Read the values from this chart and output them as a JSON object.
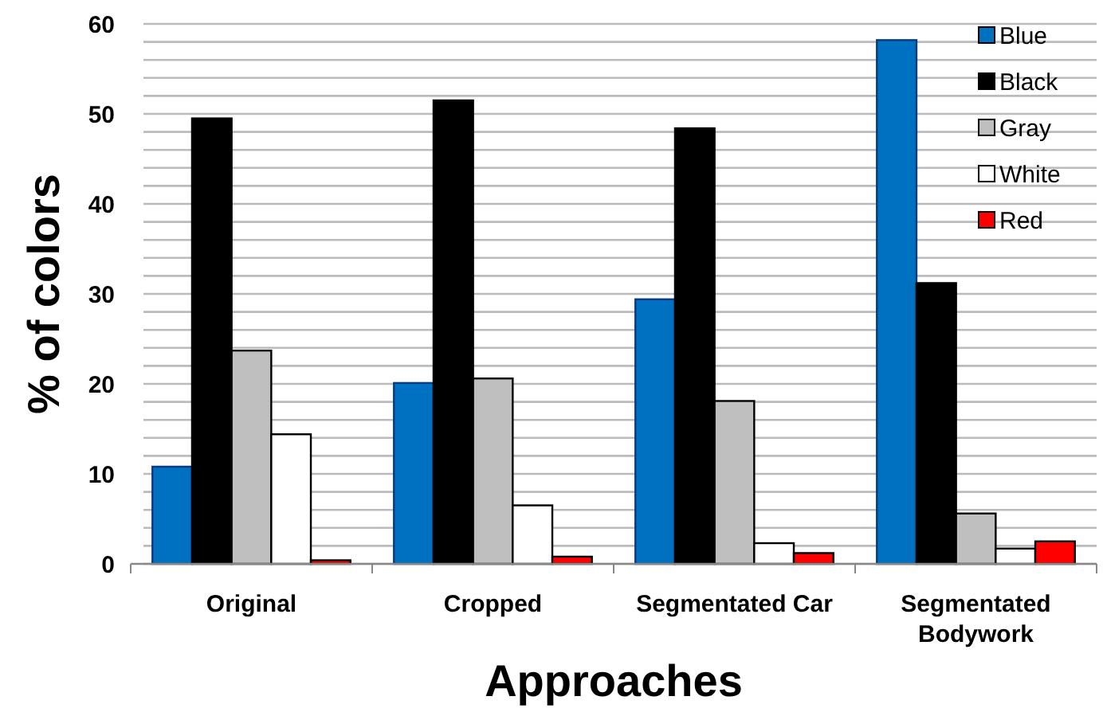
{
  "chart_data": {
    "type": "bar",
    "xlabel": "Approaches",
    "ylabel": "% of colors",
    "categories": [
      "Original",
      "Cropped",
      "Segmentated Car",
      "Segmentated Bodywork"
    ],
    "series": [
      {
        "name": "Blue",
        "color": "#0070c0",
        "values": [
          10.8,
          20.1,
          29.4,
          58.2
        ]
      },
      {
        "name": "Black",
        "color": "#000000",
        "values": [
          49.5,
          51.5,
          48.4,
          31.2
        ]
      },
      {
        "name": "Gray",
        "color": "#bfbfbf",
        "values": [
          23.7,
          20.6,
          18.1,
          5.6
        ]
      },
      {
        "name": "White",
        "color": "#ffffff",
        "values": [
          14.4,
          6.5,
          2.3,
          1.7
        ]
      },
      {
        "name": "Red",
        "color": "#ff0000",
        "values": [
          0.4,
          0.8,
          1.2,
          2.5
        ]
      }
    ],
    "ylim": [
      0,
      60
    ],
    "yticks": [
      0,
      {
        "value": 2,
        "label": null
      },
      {
        "value": 4,
        "label": null
      },
      {
        "value": 6,
        "label": null
      },
      {
        "value": 8,
        "label": null
      },
      10,
      {
        "value": 12,
        "label": null
      },
      {
        "value": 14,
        "label": null
      },
      {
        "value": 16,
        "label": null
      },
      {
        "value": 18,
        "label": null
      },
      20,
      {
        "value": 22,
        "label": null
      },
      {
        "value": 24,
        "label": null
      },
      {
        "value": 26,
        "label": null
      },
      {
        "value": 28,
        "label": null
      },
      30,
      {
        "value": 32,
        "label": null
      },
      {
        "value": 34,
        "label": null
      },
      {
        "value": 36,
        "label": null
      },
      {
        "value": 38,
        "label": null
      },
      40,
      {
        "value": 42,
        "label": null
      },
      {
        "value": 44,
        "label": null
      },
      {
        "value": 46,
        "label": null
      },
      {
        "value": 48,
        "label": null
      },
      50,
      {
        "value": 52,
        "label": null
      },
      {
        "value": 54,
        "label": null
      },
      {
        "value": 56,
        "label": null
      },
      {
        "value": 58,
        "label": null
      },
      60
    ],
    "grid": "y",
    "legend": "top right"
  }
}
